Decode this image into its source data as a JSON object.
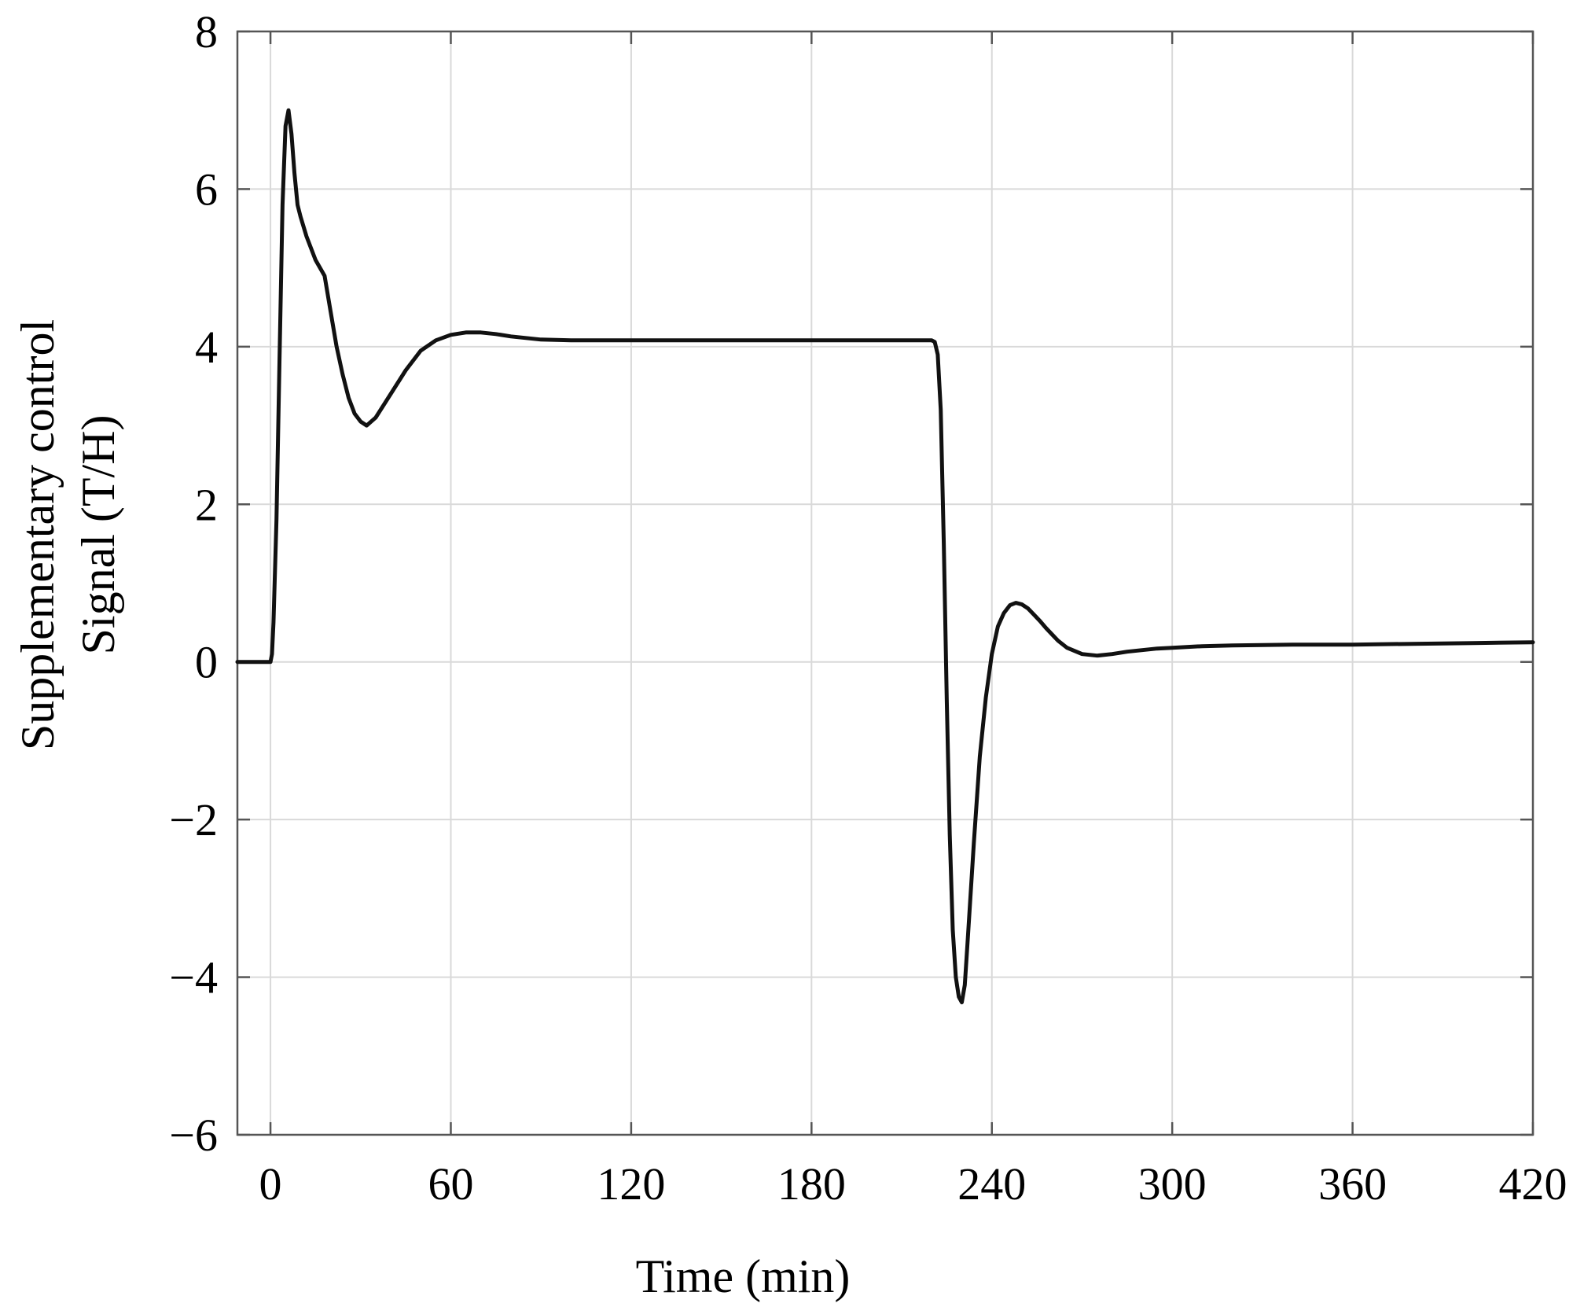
{
  "chart_data": {
    "type": "line",
    "title": "",
    "xlabel": "Time (min)",
    "ylabel_lines": [
      "Supplementary control",
      "Signal (T/H)"
    ],
    "xlim": [
      -11,
      420
    ],
    "ylim": [
      -6,
      8
    ],
    "xticks": [
      0,
      60,
      120,
      180,
      240,
      300,
      360,
      420
    ],
    "yticks": [
      8,
      6,
      4,
      2,
      0,
      -2,
      -4,
      -6
    ],
    "ytick_labels": [
      "8",
      "6",
      "4",
      "2",
      "0",
      "−2",
      "−4",
      "−6"
    ],
    "grid": true,
    "series": [
      {
        "x": [
          -11,
          -5,
          0,
          0.5,
          1,
          2,
          3,
          4,
          5,
          6,
          7,
          8,
          9,
          10,
          12,
          15,
          18,
          20,
          22,
          24,
          26,
          28,
          30,
          32,
          35,
          40,
          45,
          50,
          55,
          60,
          65,
          70,
          75,
          80,
          90,
          100,
          110,
          120,
          150,
          180,
          200,
          215,
          220,
          221,
          222,
          223,
          224,
          225,
          226,
          227,
          228,
          229,
          230,
          231,
          232,
          234,
          236,
          238,
          240,
          242,
          244,
          246,
          248,
          250,
          252,
          254,
          256,
          258,
          260,
          262,
          265,
          270,
          275,
          280,
          285,
          290,
          295,
          300,
          310,
          320,
          340,
          360,
          380,
          400,
          420
        ],
        "y": [
          0,
          0,
          0,
          0.1,
          0.5,
          1.8,
          3.8,
          5.8,
          6.8,
          7.0,
          6.7,
          6.2,
          5.8,
          5.65,
          5.4,
          5.1,
          4.9,
          4.45,
          4.0,
          3.65,
          3.35,
          3.15,
          3.05,
          3.0,
          3.1,
          3.4,
          3.7,
          3.95,
          4.08,
          4.15,
          4.18,
          4.18,
          4.16,
          4.13,
          4.09,
          4.08,
          4.08,
          4.08,
          4.08,
          4.08,
          4.08,
          4.08,
          4.08,
          4.06,
          3.9,
          3.2,
          1.5,
          -0.5,
          -2.2,
          -3.4,
          -4.0,
          -4.25,
          -4.32,
          -4.1,
          -3.5,
          -2.3,
          -1.2,
          -0.45,
          0.1,
          0.45,
          0.62,
          0.72,
          0.75,
          0.73,
          0.68,
          0.6,
          0.52,
          0.43,
          0.35,
          0.27,
          0.18,
          0.1,
          0.08,
          0.1,
          0.13,
          0.15,
          0.17,
          0.18,
          0.2,
          0.21,
          0.22,
          0.22,
          0.23,
          0.24,
          0.25
        ]
      }
    ]
  }
}
